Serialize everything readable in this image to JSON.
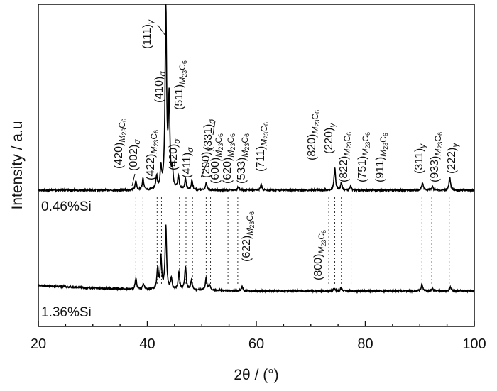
{
  "chart_data": {
    "type": "line",
    "title": "",
    "xlabel": "2θ / (°)",
    "ylabel": "Intensity / a.u",
    "xlim": [
      20,
      100
    ],
    "xticks": [
      "20",
      "40",
      "60",
      "80",
      "100"
    ],
    "grid": false,
    "legend": "none",
    "series": [
      {
        "name": "0.46%Si",
        "baseline": [
          [
            20,
            0.0
          ],
          [
            40,
            0.0
          ],
          [
            60,
            0.0
          ],
          [
            80,
            0.0
          ],
          [
            100,
            0.0
          ]
        ],
        "peaks": [
          {
            "x": 37.9,
            "h": 0.05
          },
          {
            "x": 39.2,
            "h": 0.06
          },
          {
            "x": 41.7,
            "h": 0.07
          },
          {
            "x": 42.5,
            "h": 0.11
          },
          {
            "x": 43.4,
            "h": 1.0
          },
          {
            "x": 44.0,
            "h": 0.48
          },
          {
            "x": 44.6,
            "h": 0.09
          },
          {
            "x": 45.7,
            "h": 0.07
          },
          {
            "x": 47.0,
            "h": 0.06
          },
          {
            "x": 48.2,
            "h": 0.05
          },
          {
            "x": 50.8,
            "h": 0.04
          },
          {
            "x": 56.7,
            "h": 0.02
          },
          {
            "x": 60.9,
            "h": 0.03
          },
          {
            "x": 74.4,
            "h": 0.12
          },
          {
            "x": 75.6,
            "h": 0.04
          },
          {
            "x": 77.3,
            "h": 0.02
          },
          {
            "x": 90.5,
            "h": 0.04
          },
          {
            "x": 92.3,
            "h": 0.02
          },
          {
            "x": 95.5,
            "h": 0.07
          }
        ]
      },
      {
        "name": "1.36%Si",
        "baseline": [
          [
            20,
            0.04
          ],
          [
            30,
            0.02
          ],
          [
            40,
            0.01
          ],
          [
            60,
            0.0
          ],
          [
            80,
            0.0
          ],
          [
            100,
            0.0
          ]
        ],
        "peaks": [
          {
            "x": 37.9,
            "h": 0.08
          },
          {
            "x": 39.3,
            "h": 0.04
          },
          {
            "x": 41.9,
            "h": 0.15
          },
          {
            "x": 42.5,
            "h": 0.23
          },
          {
            "x": 43.4,
            "h": 0.46
          },
          {
            "x": 44.4,
            "h": 0.08
          },
          {
            "x": 45.8,
            "h": 0.13
          },
          {
            "x": 47.0,
            "h": 0.17
          },
          {
            "x": 48.1,
            "h": 0.07
          },
          {
            "x": 50.8,
            "h": 0.09
          },
          {
            "x": 51.4,
            "h": 0.04
          },
          {
            "x": 57.4,
            "h": 0.03
          },
          {
            "x": 74.3,
            "h": 0.02
          },
          {
            "x": 75.6,
            "h": 0.02
          },
          {
            "x": 90.4,
            "h": 0.05
          },
          {
            "x": 92.3,
            "h": 0.02
          },
          {
            "x": 95.6,
            "h": 0.03
          }
        ]
      }
    ],
    "reference_lines_x": [
      37.9,
      39.2,
      41.8,
      42.6,
      45.9,
      47.1,
      48.3,
      50.8,
      51.6,
      54.8,
      56.6,
      73.3,
      74.4,
      75.6,
      77.4,
      90.4,
      92.2,
      95.4
    ],
    "peak_labels": [
      {
        "index": "(111)",
        "phase": "γ",
        "x": 43.4
      },
      {
        "index": "(410)",
        "phase": "σ",
        "x": 43.0
      },
      {
        "index": "(511)",
        "phase": "M23C6",
        "x": 44.0
      },
      {
        "index": "(331)",
        "phase": "σ",
        "x": 48.0
      },
      {
        "index": "(420)",
        "phase": "M23C6",
        "x": 37.9
      },
      {
        "index": "(002)",
        "phase": "σ",
        "x": 39.2
      },
      {
        "index": "(422)",
        "phase": "M23C6",
        "x": 41.7
      },
      {
        "index": "(420)",
        "phase": "σ",
        "x": 45.7
      },
      {
        "index": "(411)",
        "phase": "σ",
        "x": 47.0
      },
      {
        "index": "(200)",
        "phase": "γ",
        "x": 50.6
      },
      {
        "index": "(600)",
        "phase": "M23C6",
        "x": 51.6
      },
      {
        "index": "(620)",
        "phase": "M23C6",
        "x": 54.8
      },
      {
        "index": "(533)",
        "phase": "M23C6",
        "x": 56.6
      },
      {
        "index": "(711)",
        "phase": "M23C6",
        "x": 60.9
      },
      {
        "index": "(820)",
        "phase": "M23C6",
        "x": 73.3
      },
      {
        "index": "(220)",
        "phase": "γ",
        "x": 74.4
      },
      {
        "index": "(822)",
        "phase": "M23C6",
        "x": 75.6
      },
      {
        "index": "(751)",
        "phase": "M23C6",
        "x": 77.4
      },
      {
        "index": "(911)",
        "phase": "M23C6",
        "x": 80.0
      },
      {
        "index": "(311)",
        "phase": "γ",
        "x": 90.4
      },
      {
        "index": "(933)",
        "phase": "M23C6",
        "x": 92.2
      },
      {
        "index": "(222)",
        "phase": "γ",
        "x": 95.4
      },
      {
        "index": "(622)",
        "phase": "M23C6",
        "x": 57.4
      },
      {
        "index": "(800)",
        "phase": "M23C6",
        "x": 73.3
      }
    ]
  }
}
